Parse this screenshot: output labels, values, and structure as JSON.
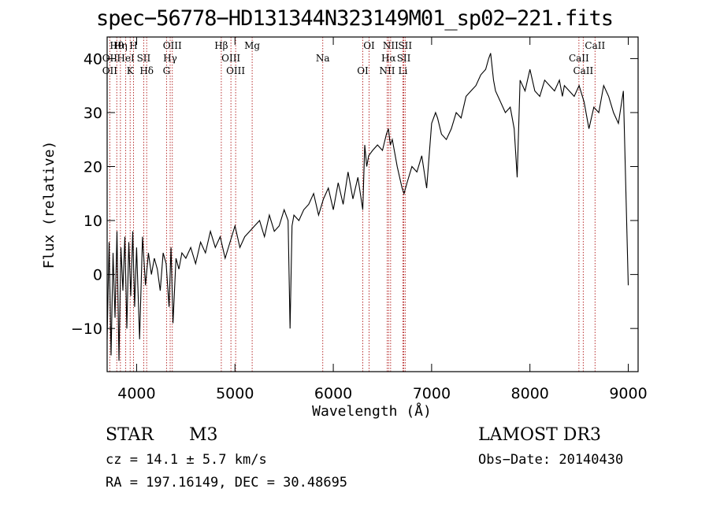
{
  "chart_data": {
    "type": "line",
    "title": "spec−56778−HD131344N323149M01_sp02−221.fits",
    "xlabel": "Wavelength (Å)",
    "ylabel": "Flux (relative)",
    "xlim": [
      3700,
      9100
    ],
    "ylim": [
      -18,
      44
    ],
    "x_ticks": [
      4000,
      5000,
      6000,
      7000,
      8000,
      9000
    ],
    "y_ticks": [
      -10,
      0,
      10,
      20,
      30,
      40
    ],
    "x_tick_labels": [
      "4000",
      "5000",
      "6000",
      "7000",
      "8000",
      "9000"
    ],
    "y_tick_labels": [
      "−10",
      "0",
      "10",
      "20",
      "30",
      "40"
    ],
    "series": [
      {
        "name": "flux",
        "color": "#000000",
        "x": [
          3700,
          3720,
          3740,
          3760,
          3780,
          3800,
          3820,
          3840,
          3860,
          3880,
          3900,
          3920,
          3940,
          3960,
          3980,
          4000,
          4030,
          4060,
          4090,
          4120,
          4150,
          4180,
          4210,
          4240,
          4270,
          4300,
          4330,
          4350,
          4370,
          4400,
          4430,
          4460,
          4500,
          4550,
          4600,
          4650,
          4700,
          4750,
          4800,
          4850,
          4900,
          4950,
          5000,
          5050,
          5100,
          5150,
          5200,
          5250,
          5300,
          5350,
          5400,
          5450,
          5500,
          5540,
          5560,
          5580,
          5600,
          5650,
          5700,
          5750,
          5800,
          5850,
          5900,
          5950,
          6000,
          6050,
          6100,
          6150,
          6200,
          6250,
          6300,
          6320,
          6340,
          6360,
          6400,
          6450,
          6500,
          6540,
          6560,
          6580,
          6600,
          6650,
          6700,
          6720,
          6750,
          6800,
          6850,
          6900,
          6950,
          7000,
          7040,
          7060,
          7100,
          7150,
          7200,
          7250,
          7300,
          7350,
          7400,
          7450,
          7500,
          7550,
          7580,
          7600,
          7630,
          7650,
          7700,
          7750,
          7800,
          7840,
          7870,
          7900,
          7950,
          8000,
          8050,
          8100,
          8150,
          8200,
          8250,
          8300,
          8330,
          8350,
          8400,
          8450,
          8500,
          8550,
          8600,
          8650,
          8700,
          8750,
          8800,
          8850,
          8900,
          8950,
          9000
        ],
        "y": [
          -12,
          6,
          -15,
          4,
          -8,
          8,
          -16,
          5,
          -3,
          7,
          -10,
          6,
          -4,
          8,
          -6,
          5,
          -12,
          7,
          -2,
          4,
          0,
          3,
          1,
          -3,
          4,
          2,
          -6,
          5,
          -9,
          3,
          1,
          4,
          3,
          5,
          2,
          6,
          4,
          8,
          5,
          7,
          3,
          6,
          9,
          5,
          7,
          8,
          9,
          10,
          7,
          11,
          8,
          9,
          12,
          10,
          -10,
          9,
          11,
          10,
          12,
          13,
          15,
          11,
          14,
          16,
          12,
          17,
          13,
          19,
          14,
          18,
          12,
          24,
          20,
          22,
          23,
          24,
          23,
          26,
          27,
          24,
          25,
          20,
          16,
          15,
          17,
          20,
          19,
          22,
          16,
          28,
          30,
          29,
          26,
          25,
          27,
          30,
          29,
          33,
          34,
          35,
          37,
          38,
          40,
          41,
          36,
          34,
          32,
          30,
          31,
          27,
          18,
          36,
          34,
          38,
          34,
          33,
          36,
          35,
          34,
          36,
          33,
          35,
          34,
          33,
          35,
          32,
          27,
          31,
          30,
          35,
          33,
          30,
          28,
          34,
          -2
        ]
      }
    ],
    "lines": [
      {
        "name": "Hθ",
        "wave": 3798
      },
      {
        "name": "OII",
        "wave": 3727
      },
      {
        "name": "OII",
        "wave": 3727
      },
      {
        "name": "Hη",
        "wave": 3835
      },
      {
        "name": "HeI",
        "wave": 3889
      },
      {
        "name": "K",
        "wave": 3934
      },
      {
        "name": "H",
        "wave": 3968
      },
      {
        "name": "SII",
        "wave": 4072
      },
      {
        "name": "Hδ",
        "wave": 4102
      },
      {
        "name": "OIII",
        "wave": 4363
      },
      {
        "name": "Hγ",
        "wave": 4341
      },
      {
        "name": "G",
        "wave": 4304
      },
      {
        "name": "Hβ",
        "wave": 4861
      },
      {
        "name": "OIII",
        "wave": 4959
      },
      {
        "name": "OIII",
        "wave": 5007
      },
      {
        "name": "Mg",
        "wave": 5175
      },
      {
        "name": "Na",
        "wave": 5893
      },
      {
        "name": "OI",
        "wave": 6300
      },
      {
        "name": "OI",
        "wave": 6364
      },
      {
        "name": "Hα",
        "wave": 6563
      },
      {
        "name": "NII",
        "wave": 6548
      },
      {
        "name": "NII",
        "wave": 6583
      },
      {
        "name": "SII",
        "wave": 6717
      },
      {
        "name": "Li",
        "wave": 6708
      },
      {
        "name": "SII",
        "wave": 6731
      },
      {
        "name": "CaII",
        "wave": 8498
      },
      {
        "name": "CaII",
        "wave": 8542
      },
      {
        "name": "CaII",
        "wave": 8662
      }
    ]
  },
  "info": {
    "object_class": "STAR",
    "subclass": "M3",
    "survey": "LAMOST DR3",
    "cz": "cz = 14.1 ± 5.7 km/s",
    "obs_date": "Obs−Date: 20140430",
    "coords": "RA = 197.16149, DEC =  30.48695"
  }
}
